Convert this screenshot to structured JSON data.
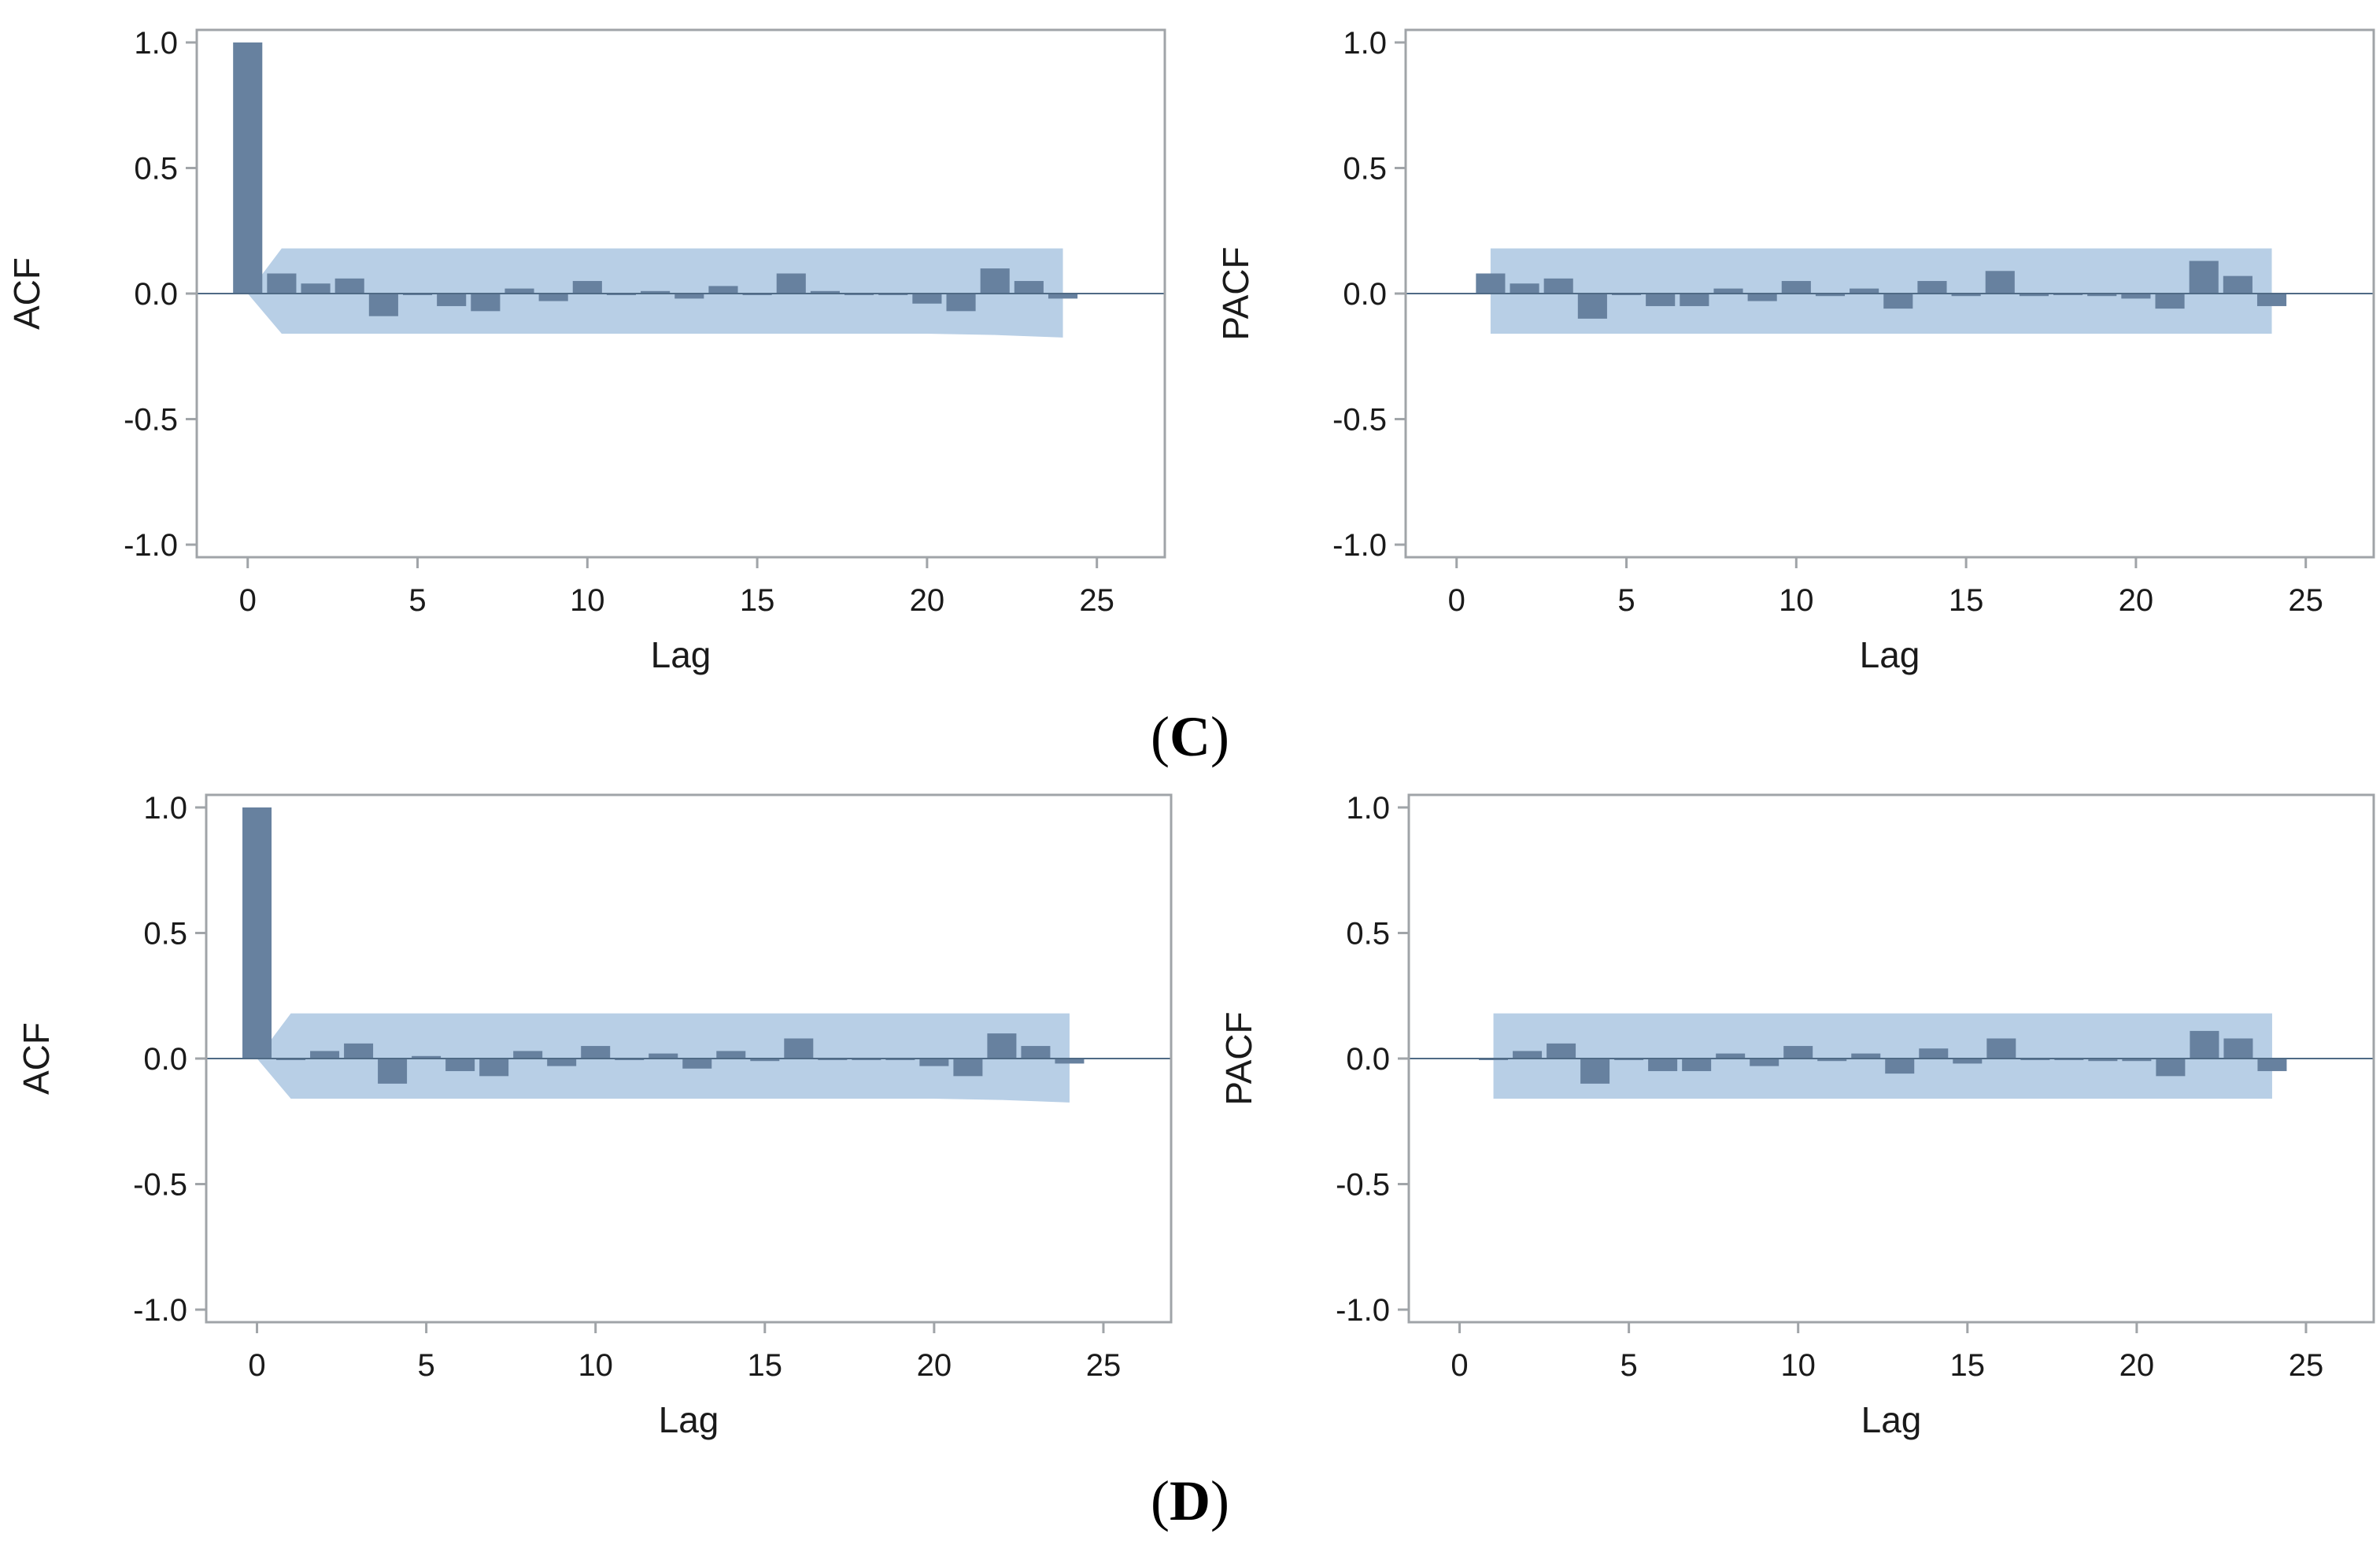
{
  "captions": {
    "c": "C",
    "d": "D"
  },
  "colors": {
    "bar": "#67819f",
    "band": "#b8cfe6",
    "frame": "#a0a4a8",
    "axis_text": "#1a1a1a"
  },
  "chart_data": [
    {
      "id": "C-ACF",
      "type": "bar",
      "ylabel": "ACF",
      "xlabel": "Lag",
      "xlim": [
        -1.5,
        27
      ],
      "ylim": [
        -1.05,
        1.05
      ],
      "xticks": [
        0,
        5,
        10,
        15,
        20,
        25
      ],
      "xtick_labels": [
        "0",
        "5",
        "10",
        "15",
        "20",
        "25"
      ],
      "yticks": [
        1.0,
        0.5,
        0.0,
        -0.5,
        -1.0
      ],
      "ytick_labels": [
        "1.0",
        "0.5",
        "0.0",
        "-0.5",
        "-1.0"
      ],
      "lags": [
        0,
        1,
        2,
        3,
        4,
        5,
        6,
        7,
        8,
        9,
        10,
        11,
        12,
        13,
        14,
        15,
        16,
        17,
        18,
        19,
        20,
        21,
        22,
        23,
        24
      ],
      "values": [
        1.0,
        0.08,
        0.04,
        0.06,
        -0.09,
        0.0,
        -0.05,
        -0.07,
        0.02,
        -0.03,
        0.05,
        0.0,
        0.01,
        -0.02,
        0.03,
        0.0,
        0.08,
        0.01,
        0.0,
        0.0,
        -0.04,
        -0.07,
        0.1,
        0.05,
        -0.02
      ],
      "confidence_band": {
        "lags": [
          0,
          1,
          4,
          8,
          12,
          16,
          20,
          22,
          24
        ],
        "upper": [
          0.0,
          0.18,
          0.18,
          0.18,
          0.18,
          0.18,
          0.18,
          0.18,
          0.18
        ],
        "lower": [
          0.0,
          -0.16,
          -0.16,
          -0.16,
          -0.16,
          -0.16,
          -0.16,
          -0.165,
          -0.175
        ]
      }
    },
    {
      "id": "C-PACF",
      "type": "bar",
      "ylabel": "PACF",
      "xlabel": "Lag",
      "xlim": [
        -1.5,
        27
      ],
      "ylim": [
        -1.05,
        1.05
      ],
      "xticks": [
        0,
        5,
        10,
        15,
        20,
        25
      ],
      "xtick_labels": [
        "0",
        "5",
        "10",
        "15",
        "20",
        "25"
      ],
      "yticks": [
        1.0,
        0.5,
        0.0,
        -0.5,
        -1.0
      ],
      "ytick_labels": [
        "1.0",
        "0.5",
        "0.0",
        "-0.5",
        "-1.0"
      ],
      "lags": [
        1,
        2,
        3,
        4,
        5,
        6,
        7,
        8,
        9,
        10,
        11,
        12,
        13,
        14,
        15,
        16,
        17,
        18,
        19,
        20,
        21,
        22,
        23,
        24
      ],
      "values": [
        0.08,
        0.04,
        0.06,
        -0.1,
        0.0,
        -0.05,
        -0.05,
        0.02,
        -0.03,
        0.05,
        -0.01,
        0.02,
        -0.06,
        0.05,
        -0.01,
        0.09,
        -0.01,
        0.0,
        -0.01,
        -0.02,
        -0.06,
        0.13,
        0.07,
        -0.05
      ],
      "confidence_band": {
        "lags": [
          1,
          24
        ],
        "upper": [
          0.18,
          0.18
        ],
        "lower": [
          -0.16,
          -0.16
        ]
      }
    },
    {
      "id": "D-ACF",
      "type": "bar",
      "ylabel": "ACF",
      "xlabel": "Lag",
      "xlim": [
        -1.5,
        27
      ],
      "ylim": [
        -1.05,
        1.05
      ],
      "xticks": [
        0,
        5,
        10,
        15,
        20,
        25
      ],
      "xtick_labels": [
        "0",
        "5",
        "10",
        "15",
        "20",
        "25"
      ],
      "yticks": [
        1.0,
        0.5,
        0.0,
        -0.5,
        -1.0
      ],
      "ytick_labels": [
        "1.0",
        "0.5",
        "0.0",
        "-0.5",
        "-1.0"
      ],
      "lags": [
        0,
        1,
        2,
        3,
        4,
        5,
        6,
        7,
        8,
        9,
        10,
        11,
        12,
        13,
        14,
        15,
        16,
        17,
        18,
        19,
        20,
        21,
        22,
        23,
        24
      ],
      "values": [
        1.0,
        0.0,
        0.03,
        0.06,
        -0.1,
        0.01,
        -0.05,
        -0.07,
        0.03,
        -0.03,
        0.05,
        0.0,
        0.02,
        -0.04,
        0.03,
        -0.01,
        0.08,
        0.0,
        0.0,
        0.0,
        -0.03,
        -0.07,
        0.1,
        0.05,
        -0.02
      ],
      "confidence_band": {
        "lags": [
          0,
          1,
          4,
          8,
          12,
          16,
          20,
          22,
          24
        ],
        "upper": [
          0.0,
          0.18,
          0.18,
          0.18,
          0.18,
          0.18,
          0.18,
          0.18,
          0.18
        ],
        "lower": [
          0.0,
          -0.16,
          -0.16,
          -0.16,
          -0.16,
          -0.16,
          -0.16,
          -0.165,
          -0.175
        ]
      }
    },
    {
      "id": "D-PACF",
      "type": "bar",
      "ylabel": "PACF",
      "xlabel": "Lag",
      "xlim": [
        -1.5,
        27
      ],
      "ylim": [
        -1.05,
        1.05
      ],
      "xticks": [
        0,
        5,
        10,
        15,
        20,
        25
      ],
      "xtick_labels": [
        "0",
        "5",
        "10",
        "15",
        "20",
        "25"
      ],
      "yticks": [
        1.0,
        0.5,
        0.0,
        -0.5,
        -1.0
      ],
      "ytick_labels": [
        "1.0",
        "0.5",
        "0.0",
        "-0.5",
        "-1.0"
      ],
      "lags": [
        1,
        2,
        3,
        4,
        5,
        6,
        7,
        8,
        9,
        10,
        11,
        12,
        13,
        14,
        15,
        16,
        17,
        18,
        19,
        20,
        21,
        22,
        23,
        24
      ],
      "values": [
        0.0,
        0.03,
        0.06,
        -0.1,
        0.0,
        -0.05,
        -0.05,
        0.02,
        -0.03,
        0.05,
        -0.01,
        0.02,
        -0.06,
        0.04,
        -0.02,
        0.08,
        0.0,
        0.0,
        -0.01,
        -0.01,
        -0.07,
        0.11,
        0.08,
        -0.05
      ],
      "confidence_band": {
        "lags": [
          1,
          24
        ],
        "upper": [
          0.18,
          0.18
        ],
        "lower": [
          -0.16,
          -0.16
        ]
      }
    }
  ]
}
